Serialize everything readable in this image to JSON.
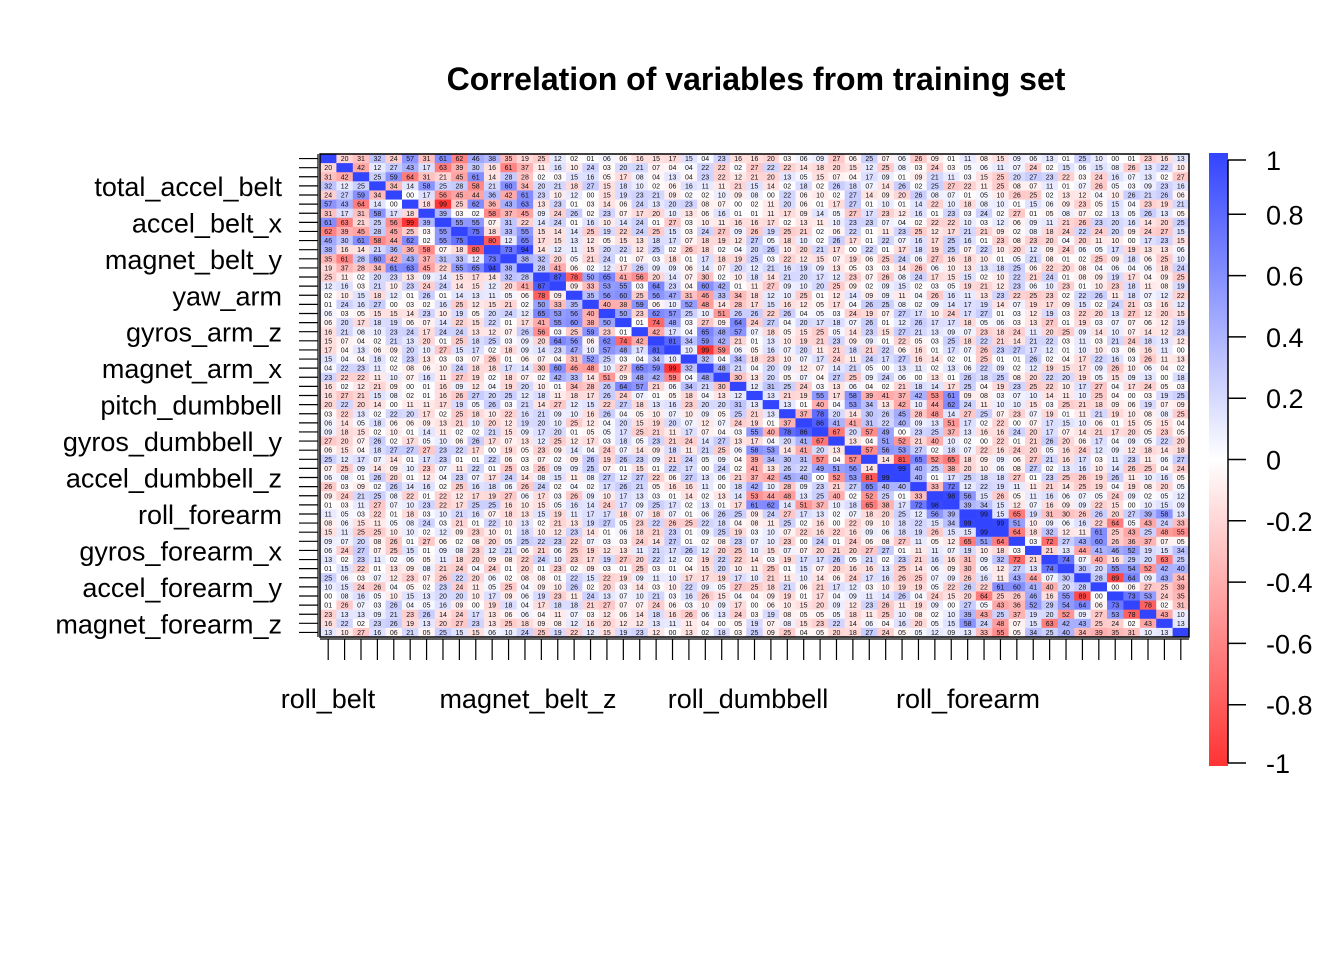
{
  "chart_data": {
    "type": "heatmap",
    "title": "Correlation of variables from training set",
    "n_variables": 53,
    "y_labels": [
      "total_accel_belt",
      "accel_belt_x",
      "magnet_belt_y",
      "yaw_arm",
      "gyros_arm_z",
      "magnet_arm_x",
      "pitch_dumbbell",
      "gyros_dumbbell_y",
      "accel_dumbbell_z",
      "roll_forearm",
      "gyros_forearm_x",
      "accel_forearm_y",
      "magnet_forearm_z"
    ],
    "y_label_rows": [
      3,
      7,
      11,
      15,
      19,
      23,
      27,
      31,
      35,
      39,
      43,
      47,
      51
    ],
    "x_labels": [
      "roll_belt",
      "magnet_belt_z",
      "roll_dumbbell",
      "roll_forearm"
    ],
    "x_label_cols": [
      0,
      13,
      26,
      39
    ],
    "diagonal_value": 1,
    "color_scale": {
      "min": -1,
      "max": 1,
      "low": "#ff3333",
      "mid": "#ffffff",
      "high": "#3344ff"
    },
    "legend_ticks": [
      "1",
      "0.8",
      "0.6",
      "0.4",
      "0.2",
      "0",
      "-0.2",
      "-0.4",
      "-0.6",
      "-0.8",
      "-1"
    ],
    "legend_tick_values": [
      1,
      0.8,
      0.6,
      0.4,
      0.2,
      0,
      -0.2,
      -0.4,
      -0.6,
      -0.8,
      -1
    ],
    "legend_placement": "right",
    "grid": false
  }
}
